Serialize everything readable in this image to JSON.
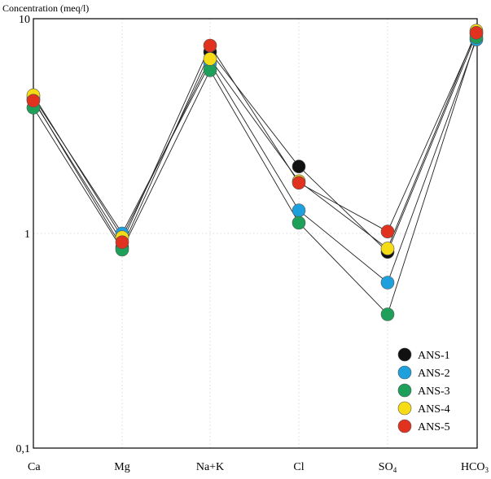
{
  "chart_data": {
    "type": "line",
    "ylabel": "Concentration (meq/l)",
    "yscale": "log",
    "ylim": [
      0.1,
      10
    ],
    "yticks": [
      {
        "value": 10,
        "label": "10"
      },
      {
        "value": 1,
        "label": "1"
      },
      {
        "value": 0.1,
        "label": "0,1"
      }
    ],
    "categories": [
      "Ca",
      "Mg",
      "Na+K",
      "Cl",
      "SO",
      "HCO"
    ],
    "category_subscripts": [
      "",
      "",
      "",
      "",
      "4",
      "3"
    ],
    "grid": true,
    "legend_position": "bottom-right",
    "series": [
      {
        "name": "ANS-1",
        "color": "#111111",
        "values": [
          4.2,
          0.86,
          7.0,
          2.05,
          0.82,
          8.5
        ]
      },
      {
        "name": "ANS-2",
        "color": "#1ea0dc",
        "values": [
          4.3,
          1.0,
          6.2,
          1.28,
          0.59,
          8.0
        ]
      },
      {
        "name": "ANS-3",
        "color": "#1fa05a",
        "values": [
          3.85,
          0.84,
          5.75,
          1.12,
          0.42,
          8.2
        ]
      },
      {
        "name": "ANS-4",
        "color": "#f5dc14",
        "values": [
          4.4,
          0.96,
          6.5,
          1.75,
          0.85,
          8.8
        ]
      },
      {
        "name": "ANS-5",
        "color": "#e0321e",
        "values": [
          4.15,
          0.91,
          7.5,
          1.72,
          1.02,
          8.6
        ]
      }
    ]
  }
}
